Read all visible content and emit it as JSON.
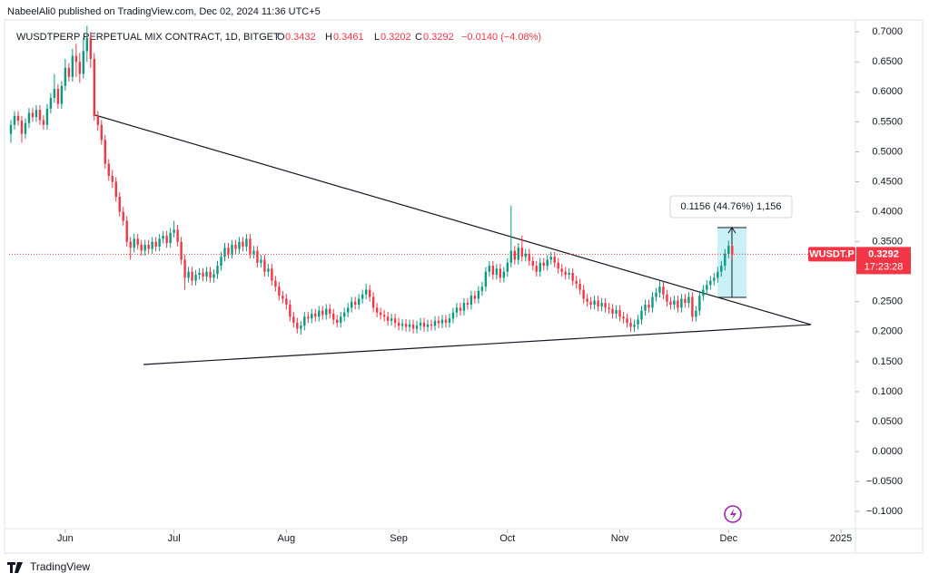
{
  "header": {
    "author_line": "NabeelAli0 published on TradingView.com, Dec 02, 2024 11:36 UTC+5"
  },
  "chart_data": {
    "type": "candlestick",
    "title": "WUSDTPERP PERPETUAL MIX CONTRACT, 1D, BITGET",
    "ohlc_labels": [
      "O",
      "H",
      "L",
      "C"
    ],
    "change_label": "−0.0140 (−4.08%)",
    "symbol_label": "WUSDT.P",
    "countdown": "17:23:28",
    "measure_label": "0.1156 (44.76%) 1,156",
    "up_color": "#089981",
    "down_color": "#f23645",
    "open": [
      0.53,
      0.545,
      0.56,
      0.552,
      0.53,
      0.548,
      0.565,
      0.558,
      0.57,
      0.553,
      0.545,
      0.572,
      0.59,
      0.605,
      0.58,
      0.61,
      0.64,
      0.625,
      0.66,
      0.65,
      0.63,
      0.668,
      0.69,
      0.655,
      0.56,
      0.545,
      0.52,
      0.48,
      0.46,
      0.45,
      0.425,
      0.4,
      0.385,
      0.35,
      0.34,
      0.355,
      0.345,
      0.335,
      0.345,
      0.338,
      0.35,
      0.342,
      0.355,
      0.36,
      0.348,
      0.365,
      0.37,
      0.35,
      0.32,
      0.29,
      0.3,
      0.285,
      0.295,
      0.298,
      0.292,
      0.3,
      0.29,
      0.296,
      0.31,
      0.325,
      0.34,
      0.33,
      0.345,
      0.338,
      0.35,
      0.342,
      0.355,
      0.33,
      0.335,
      0.315,
      0.32,
      0.3,
      0.305,
      0.285,
      0.275,
      0.26,
      0.255,
      0.245,
      0.225,
      0.215,
      0.205,
      0.21,
      0.225,
      0.222,
      0.23,
      0.225,
      0.235,
      0.228,
      0.238,
      0.23,
      0.22,
      0.215,
      0.225,
      0.232,
      0.24,
      0.25,
      0.245,
      0.255,
      0.262,
      0.27,
      0.258,
      0.24,
      0.232,
      0.228,
      0.225,
      0.218,
      0.222,
      0.215,
      0.21,
      0.213,
      0.208,
      0.212,
      0.205,
      0.21,
      0.215,
      0.208,
      0.212,
      0.21,
      0.218,
      0.214,
      0.22,
      0.215,
      0.222,
      0.232,
      0.24,
      0.235,
      0.248,
      0.245,
      0.26,
      0.255,
      0.268,
      0.275,
      0.3,
      0.31,
      0.295,
      0.305,
      0.29,
      0.3,
      0.315,
      0.335,
      0.32,
      0.34,
      0.325,
      0.33,
      0.318,
      0.31,
      0.3,
      0.315,
      0.31,
      0.32,
      0.325,
      0.315,
      0.305,
      0.3,
      0.295,
      0.298,
      0.285,
      0.28,
      0.27,
      0.255,
      0.25,
      0.245,
      0.252,
      0.242,
      0.248,
      0.24,
      0.238,
      0.23,
      0.236,
      0.225,
      0.222,
      0.215,
      0.208,
      0.212,
      0.22,
      0.235,
      0.245,
      0.24,
      0.258,
      0.265,
      0.275,
      0.262,
      0.25,
      0.245,
      0.252,
      0.24,
      0.255,
      0.248,
      0.258,
      0.225,
      0.235,
      0.26,
      0.27,
      0.278,
      0.285,
      0.29,
      0.3,
      0.31,
      0.33,
      0.3432
    ],
    "high": [
      0.553,
      0.568,
      0.568,
      0.56,
      0.556,
      0.573,
      0.573,
      0.578,
      0.578,
      0.561,
      0.58,
      0.598,
      0.63,
      0.613,
      0.618,
      0.655,
      0.648,
      0.672,
      0.68,
      0.665,
      0.69,
      0.71,
      0.7,
      0.665,
      0.568,
      0.553,
      0.528,
      0.488,
      0.47,
      0.458,
      0.433,
      0.408,
      0.393,
      0.358,
      0.363,
      0.363,
      0.353,
      0.353,
      0.353,
      0.358,
      0.358,
      0.363,
      0.368,
      0.368,
      0.373,
      0.385,
      0.378,
      0.358,
      0.328,
      0.308,
      0.308,
      0.303,
      0.306,
      0.306,
      0.308,
      0.308,
      0.304,
      0.318,
      0.333,
      0.348,
      0.348,
      0.353,
      0.353,
      0.358,
      0.358,
      0.363,
      0.363,
      0.343,
      0.343,
      0.328,
      0.328,
      0.313,
      0.313,
      0.293,
      0.283,
      0.268,
      0.263,
      0.253,
      0.233,
      0.223,
      0.218,
      0.233,
      0.233,
      0.238,
      0.238,
      0.243,
      0.243,
      0.246,
      0.246,
      0.238,
      0.228,
      0.233,
      0.24,
      0.248,
      0.258,
      0.258,
      0.263,
      0.27,
      0.28,
      0.278,
      0.266,
      0.248,
      0.24,
      0.236,
      0.233,
      0.23,
      0.23,
      0.223,
      0.221,
      0.221,
      0.22,
      0.22,
      0.218,
      0.223,
      0.223,
      0.22,
      0.22,
      0.226,
      0.226,
      0.228,
      0.228,
      0.23,
      0.24,
      0.248,
      0.248,
      0.256,
      0.256,
      0.268,
      0.268,
      0.276,
      0.283,
      0.308,
      0.318,
      0.318,
      0.313,
      0.313,
      0.308,
      0.323,
      0.41,
      0.343,
      0.348,
      0.36,
      0.338,
      0.338,
      0.326,
      0.318,
      0.323,
      0.323,
      0.328,
      0.333,
      0.333,
      0.323,
      0.313,
      0.308,
      0.306,
      0.306,
      0.293,
      0.288,
      0.278,
      0.263,
      0.258,
      0.26,
      0.26,
      0.256,
      0.256,
      0.248,
      0.246,
      0.244,
      0.244,
      0.233,
      0.23,
      0.223,
      0.22,
      0.228,
      0.243,
      0.253,
      0.253,
      0.266,
      0.273,
      0.285,
      0.283,
      0.27,
      0.258,
      0.26,
      0.26,
      0.263,
      0.263,
      0.266,
      0.266,
      0.243,
      0.268,
      0.278,
      0.286,
      0.293,
      0.298,
      0.308,
      0.318,
      0.338,
      0.352,
      0.3461
    ],
    "low": [
      0.515,
      0.537,
      0.544,
      0.515,
      0.522,
      0.54,
      0.55,
      0.55,
      0.545,
      0.537,
      0.537,
      0.564,
      0.582,
      0.572,
      0.572,
      0.602,
      0.617,
      0.617,
      0.625,
      0.615,
      0.622,
      0.65,
      0.64,
      0.552,
      0.535,
      0.512,
      0.472,
      0.452,
      0.44,
      0.417,
      0.392,
      0.377,
      0.342,
      0.32,
      0.332,
      0.337,
      0.327,
      0.327,
      0.33,
      0.33,
      0.334,
      0.334,
      0.347,
      0.34,
      0.34,
      0.357,
      0.342,
      0.312,
      0.27,
      0.282,
      0.277,
      0.277,
      0.287,
      0.284,
      0.284,
      0.282,
      0.282,
      0.288,
      0.302,
      0.317,
      0.322,
      0.322,
      0.33,
      0.33,
      0.334,
      0.334,
      0.322,
      0.322,
      0.307,
      0.307,
      0.292,
      0.292,
      0.277,
      0.267,
      0.252,
      0.247,
      0.237,
      0.217,
      0.207,
      0.197,
      0.195,
      0.202,
      0.214,
      0.214,
      0.217,
      0.217,
      0.22,
      0.22,
      0.222,
      0.212,
      0.207,
      0.207,
      0.217,
      0.224,
      0.232,
      0.237,
      0.237,
      0.247,
      0.254,
      0.25,
      0.232,
      0.224,
      0.22,
      0.217,
      0.21,
      0.21,
      0.207,
      0.202,
      0.202,
      0.2,
      0.2,
      0.197,
      0.197,
      0.202,
      0.2,
      0.2,
      0.202,
      0.202,
      0.206,
      0.206,
      0.207,
      0.207,
      0.214,
      0.224,
      0.227,
      0.227,
      0.237,
      0.237,
      0.247,
      0.247,
      0.26,
      0.267,
      0.292,
      0.287,
      0.287,
      0.282,
      0.282,
      0.292,
      0.307,
      0.312,
      0.312,
      0.317,
      0.317,
      0.31,
      0.302,
      0.292,
      0.292,
      0.302,
      0.302,
      0.312,
      0.307,
      0.297,
      0.292,
      0.287,
      0.287,
      0.277,
      0.272,
      0.262,
      0.247,
      0.242,
      0.237,
      0.237,
      0.234,
      0.234,
      0.232,
      0.23,
      0.222,
      0.222,
      0.217,
      0.214,
      0.207,
      0.2,
      0.2,
      0.204,
      0.212,
      0.227,
      0.232,
      0.232,
      0.25,
      0.257,
      0.254,
      0.242,
      0.237,
      0.237,
      0.232,
      0.232,
      0.24,
      0.24,
      0.217,
      0.217,
      0.227,
      0.252,
      0.262,
      0.27,
      0.277,
      0.282,
      0.292,
      0.302,
      0.322,
      0.3202
    ],
    "close": [
      0.545,
      0.56,
      0.552,
      0.53,
      0.548,
      0.565,
      0.558,
      0.57,
      0.553,
      0.545,
      0.572,
      0.59,
      0.605,
      0.58,
      0.61,
      0.64,
      0.625,
      0.66,
      0.65,
      0.63,
      0.668,
      0.69,
      0.655,
      0.56,
      0.545,
      0.52,
      0.48,
      0.46,
      0.45,
      0.425,
      0.4,
      0.385,
      0.35,
      0.34,
      0.355,
      0.345,
      0.335,
      0.345,
      0.338,
      0.35,
      0.342,
      0.355,
      0.36,
      0.348,
      0.365,
      0.37,
      0.35,
      0.32,
      0.29,
      0.3,
      0.285,
      0.295,
      0.298,
      0.292,
      0.3,
      0.29,
      0.296,
      0.31,
      0.325,
      0.34,
      0.33,
      0.345,
      0.338,
      0.35,
      0.342,
      0.355,
      0.33,
      0.335,
      0.315,
      0.32,
      0.3,
      0.305,
      0.285,
      0.275,
      0.26,
      0.255,
      0.245,
      0.225,
      0.215,
      0.205,
      0.21,
      0.225,
      0.222,
      0.23,
      0.225,
      0.235,
      0.228,
      0.238,
      0.23,
      0.22,
      0.215,
      0.225,
      0.232,
      0.24,
      0.25,
      0.245,
      0.255,
      0.262,
      0.27,
      0.258,
      0.24,
      0.232,
      0.228,
      0.225,
      0.218,
      0.222,
      0.215,
      0.21,
      0.213,
      0.208,
      0.212,
      0.205,
      0.21,
      0.215,
      0.208,
      0.212,
      0.21,
      0.218,
      0.214,
      0.22,
      0.215,
      0.222,
      0.232,
      0.24,
      0.235,
      0.248,
      0.245,
      0.26,
      0.255,
      0.268,
      0.275,
      0.3,
      0.31,
      0.295,
      0.305,
      0.29,
      0.3,
      0.315,
      0.335,
      0.32,
      0.34,
      0.325,
      0.33,
      0.318,
      0.31,
      0.3,
      0.315,
      0.31,
      0.32,
      0.325,
      0.315,
      0.305,
      0.3,
      0.295,
      0.298,
      0.285,
      0.28,
      0.27,
      0.255,
      0.25,
      0.245,
      0.252,
      0.242,
      0.248,
      0.24,
      0.238,
      0.23,
      0.236,
      0.225,
      0.222,
      0.215,
      0.208,
      0.212,
      0.22,
      0.235,
      0.245,
      0.24,
      0.258,
      0.265,
      0.275,
      0.262,
      0.25,
      0.245,
      0.252,
      0.24,
      0.255,
      0.248,
      0.258,
      0.225,
      0.235,
      0.26,
      0.27,
      0.278,
      0.285,
      0.29,
      0.3,
      0.31,
      0.33,
      0.3432,
      0.3292
    ],
    "xlim": [
      -0.5,
      233
    ],
    "xticks": [
      {
        "value": 15,
        "label": "Jun"
      },
      {
        "value": 45,
        "label": "Jul"
      },
      {
        "value": 76,
        "label": "Aug"
      },
      {
        "value": 107,
        "label": "Sep"
      },
      {
        "value": 137,
        "label": "Oct"
      },
      {
        "value": 168,
        "label": "Nov"
      },
      {
        "value": 198,
        "label": "Dec"
      },
      {
        "value": 229,
        "label": "2025"
      }
    ],
    "ylim": [
      -0.13,
      0.72
    ],
    "yticks": [
      {
        "value": 0.7,
        "label": "0.7000"
      },
      {
        "value": 0.65,
        "label": "0.6500"
      },
      {
        "value": 0.6,
        "label": "0.6000"
      },
      {
        "value": 0.55,
        "label": "0.5500"
      },
      {
        "value": 0.5,
        "label": "0.5000"
      },
      {
        "value": 0.45,
        "label": "0.4500"
      },
      {
        "value": 0.4,
        "label": "0.4000"
      },
      {
        "value": 0.35,
        "label": "0.3500"
      },
      {
        "value": 0.3,
        "label": "0.3000"
      },
      {
        "value": 0.25,
        "label": "0.2500"
      },
      {
        "value": 0.2,
        "label": "0.2000"
      },
      {
        "value": 0.15,
        "label": "0.1500"
      },
      {
        "value": 0.1,
        "label": "0.1000"
      },
      {
        "value": 0.05,
        "label": "0.0500"
      },
      {
        "value": 0,
        "label": "0.0000"
      },
      {
        "value": -0.05,
        "label": "−0.0500"
      },
      {
        "value": -0.1,
        "label": "−0.1000"
      }
    ]
  },
  "footer": {
    "brand": "TradingView"
  }
}
